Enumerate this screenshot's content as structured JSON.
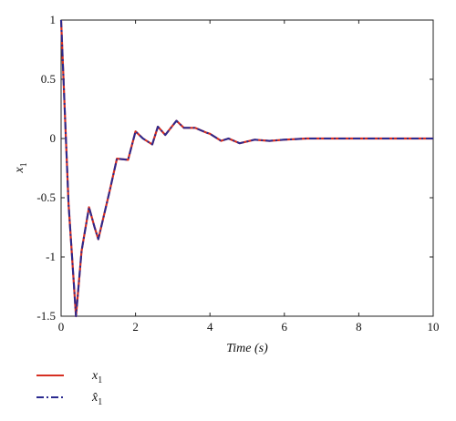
{
  "chart_data": {
    "type": "line",
    "xlabel": "Time (s)",
    "ylabel": "x",
    "ylabel_subscript": "1",
    "xlim": [
      0,
      10
    ],
    "ylim": [
      -1.5,
      1
    ],
    "xticks": [
      "0",
      "2",
      "4",
      "6",
      "8",
      "10"
    ],
    "yticks": [
      "1",
      "0.5",
      "0",
      "-0.5",
      "-1",
      "-1.5"
    ],
    "grid": false,
    "legend_position": "bottom-left, outside plot",
    "x": [
      0,
      0.2,
      0.4,
      0.55,
      0.75,
      0.9,
      1.0,
      1.3,
      1.5,
      1.8,
      2.0,
      2.2,
      2.45,
      2.6,
      2.8,
      3.1,
      3.3,
      3.6,
      3.9,
      4.0,
      4.15,
      4.3,
      4.5,
      4.8,
      5.2,
      5.6,
      6.0,
      6.6,
      7.5,
      8.5,
      10.0
    ],
    "series": [
      {
        "name": "x",
        "subscript": "1",
        "style": "solid",
        "color": "#d62f22",
        "values": [
          1.0,
          -0.55,
          -1.5,
          -0.95,
          -0.58,
          -0.75,
          -0.85,
          -0.45,
          -0.17,
          -0.18,
          0.06,
          0.0,
          -0.05,
          0.1,
          0.03,
          0.15,
          0.09,
          0.09,
          0.05,
          0.04,
          0.01,
          -0.02,
          0.0,
          -0.04,
          -0.01,
          -0.02,
          -0.01,
          0.0,
          0.0,
          0.0,
          0.0
        ]
      },
      {
        "name": "x̂",
        "subscript": "1",
        "style": "dash-dot",
        "color": "#2a2a8f",
        "values": [
          1.0,
          -0.55,
          -1.5,
          -0.95,
          -0.58,
          -0.75,
          -0.85,
          -0.45,
          -0.17,
          -0.18,
          0.06,
          0.0,
          -0.05,
          0.1,
          0.03,
          0.15,
          0.09,
          0.09,
          0.05,
          0.04,
          0.01,
          -0.02,
          0.0,
          -0.04,
          -0.01,
          -0.02,
          -0.01,
          0.0,
          0.0,
          0.0,
          0.0
        ]
      }
    ]
  }
}
